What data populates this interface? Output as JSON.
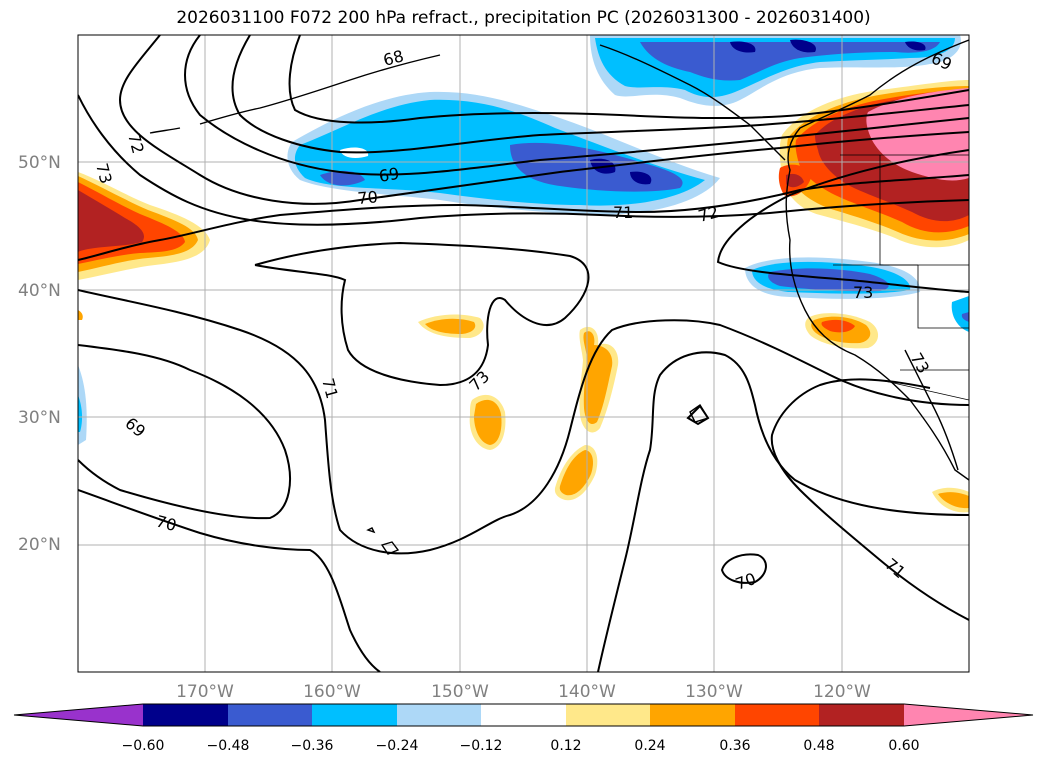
{
  "title": "2026031100 F072 200 hPa refract., precipitation PC (2026031300 - 2026031400)",
  "chart_data": {
    "type": "heatmap",
    "title": "2026031100 F072 200 hPa refract., precipitation PC (2026031300 - 2026031400)",
    "projection": "plate carree",
    "lon_range": [
      -180,
      -110
    ],
    "lat_range": [
      10,
      60
    ],
    "grid": true,
    "lat_ticks": [
      "20°N",
      "30°N",
      "40°N",
      "50°N"
    ],
    "lon_ticks": [
      "170°W",
      "160°W",
      "150°W",
      "140°W",
      "130°W",
      "120°W"
    ],
    "contour_labels": [
      "68",
      "69",
      "69",
      "69",
      "70",
      "70",
      "70",
      "71",
      "71",
      "71",
      "71",
      "72",
      "72",
      "73",
      "73",
      "73",
      "73"
    ],
    "colorbar": {
      "ticks": [
        "−0.60",
        "−0.48",
        "−0.36",
        "−0.24",
        "−0.12",
        "0.12",
        "0.24",
        "0.36",
        "0.48",
        "0.60"
      ],
      "bins": [
        {
          "range": "< -0.60",
          "color": "#9932cc"
        },
        {
          "range": "-0.60 to -0.48",
          "color": "#00008b"
        },
        {
          "range": "-0.48 to -0.36",
          "color": "#3a5bd0"
        },
        {
          "range": "-0.36 to -0.24",
          "color": "#00bfff"
        },
        {
          "range": "-0.24 to -0.12",
          "color": "#add8f7"
        },
        {
          "range": "-0.12 to 0.12",
          "color": "#ffffff"
        },
        {
          "range": "0.12 to 0.24",
          "color": "#ffe88a"
        },
        {
          "range": "0.24 to 0.36",
          "color": "#ffa500"
        },
        {
          "range": "0.36 to 0.48",
          "color": "#ff4500"
        },
        {
          "range": "0.48 to 0.60",
          "color": "#b22222"
        },
        {
          "range": "> 0.60",
          "color": "#ff85b0"
        }
      ],
      "extend": "both"
    }
  }
}
